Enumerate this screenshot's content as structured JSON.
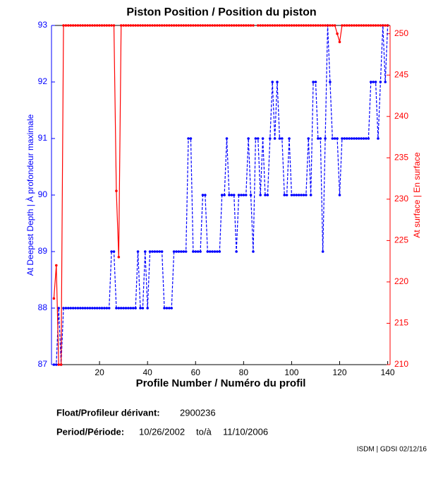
{
  "chart_data": {
    "type": "line",
    "title": "Piston Position / Position du piston",
    "xlabel": "Profile Number / Numéro du profil",
    "ylabel": "At Deepest Depth | À profondeur maximale",
    "y2label": "At surface | En surface",
    "x": [
      1,
      2,
      3,
      4,
      5,
      6,
      7,
      8,
      9,
      10,
      11,
      12,
      13,
      14,
      15,
      16,
      17,
      18,
      19,
      20,
      21,
      22,
      23,
      24,
      25,
      26,
      27,
      28,
      29,
      30,
      31,
      32,
      33,
      34,
      35,
      36,
      37,
      38,
      39,
      40,
      41,
      42,
      43,
      44,
      45,
      46,
      47,
      48,
      49,
      50,
      51,
      52,
      53,
      54,
      55,
      56,
      57,
      58,
      59,
      60,
      61,
      62,
      63,
      64,
      65,
      66,
      67,
      68,
      69,
      70,
      71,
      72,
      73,
      74,
      75,
      76,
      77,
      78,
      79,
      80,
      81,
      82,
      83,
      84,
      85,
      86,
      87,
      88,
      89,
      90,
      91,
      92,
      93,
      94,
      95,
      96,
      97,
      98,
      99,
      100,
      101,
      102,
      103,
      104,
      105,
      106,
      107,
      108,
      109,
      110,
      111,
      112,
      113,
      114,
      115,
      116,
      117,
      118,
      119,
      120,
      121,
      122,
      123,
      124,
      125,
      126,
      127,
      128,
      129,
      130,
      131,
      132,
      133,
      134,
      135,
      136,
      137,
      138,
      139,
      140
    ],
    "series": [
      {
        "name": "At Deepest Depth",
        "color": "#0000ff",
        "dashed": true,
        "values": [
          87,
          87,
          88,
          87,
          88,
          88,
          88,
          88,
          88,
          88,
          88,
          88,
          88,
          88,
          88,
          88,
          88,
          88,
          88,
          88,
          88,
          88,
          88,
          88,
          89,
          89,
          88,
          88,
          88,
          88,
          88,
          88,
          88,
          88,
          88,
          89,
          88,
          88,
          89,
          88,
          89,
          89,
          89,
          89,
          89,
          89,
          88,
          88,
          88,
          88,
          89,
          89,
          89,
          89,
          89,
          89,
          91,
          91,
          89,
          89,
          89,
          89,
          90,
          90,
          89,
          89,
          89,
          89,
          89,
          89,
          90,
          90,
          91,
          90,
          90,
          90,
          89,
          90,
          90,
          90,
          90,
          91,
          90,
          89,
          91,
          91,
          90,
          91,
          90,
          90,
          91,
          92,
          91,
          92,
          91,
          91,
          90,
          90,
          91,
          90,
          90,
          90,
          90,
          90,
          90,
          90,
          91,
          90,
          92,
          92,
          91,
          91,
          89,
          91,
          93,
          92,
          91,
          91,
          91,
          90,
          91,
          91,
          91,
          91,
          91,
          91,
          91,
          91,
          91,
          91,
          91,
          91,
          92,
          92,
          92,
          91,
          92,
          93,
          92,
          93
        ]
      },
      {
        "name": "At surface",
        "color": "#ff0000",
        "axis": "y2",
        "dashed": false,
        "values": [
          218,
          222,
          210,
          210,
          251,
          251,
          251,
          251,
          251,
          251,
          251,
          251,
          251,
          251,
          251,
          251,
          251,
          251,
          251,
          251,
          251,
          251,
          251,
          251,
          251,
          251,
          231,
          223,
          251,
          251,
          251,
          251,
          251,
          251,
          251,
          251,
          251,
          251,
          251,
          251,
          251,
          251,
          251,
          251,
          251,
          251,
          251,
          251,
          251,
          251,
          251,
          251,
          251,
          251,
          251,
          251,
          251,
          251,
          251,
          251,
          251,
          251,
          251,
          251,
          251,
          251,
          251,
          251,
          251,
          251,
          251,
          251,
          251,
          251,
          251,
          251,
          251,
          251,
          251,
          251,
          251,
          251,
          251,
          251,
          null,
          251,
          251,
          251,
          251,
          251,
          251,
          251,
          251,
          251,
          251,
          251,
          251,
          251,
          251,
          251,
          251,
          251,
          251,
          251,
          251,
          251,
          251,
          251,
          251,
          251,
          251,
          251,
          251,
          251,
          251,
          251,
          251,
          251,
          250,
          249,
          251,
          251,
          251,
          251,
          251,
          251,
          251,
          251,
          251,
          251,
          251,
          251,
          251,
          251,
          251,
          251,
          251,
          251,
          251,
          251
        ]
      }
    ],
    "xlim": [
      0,
      141
    ],
    "xticks": [
      20,
      40,
      60,
      80,
      100,
      120,
      140
    ],
    "ylim": [
      87,
      93
    ],
    "yticks": [
      87,
      88,
      89,
      90,
      91,
      92,
      93
    ],
    "y2lim": [
      210,
      251
    ],
    "y2ticks": [
      210,
      215,
      220,
      225,
      230,
      235,
      240,
      245,
      250
    ],
    "axis_color": "#000000"
  },
  "info": {
    "float_label": "Float/Profileur dérivant:",
    "float_id": "2900236",
    "period_label": "Period/Période:",
    "start": "10/26/2002",
    "to": "to/à",
    "end": "11/10/2006",
    "footer": "ISDM | GDSI 02/12/16"
  }
}
